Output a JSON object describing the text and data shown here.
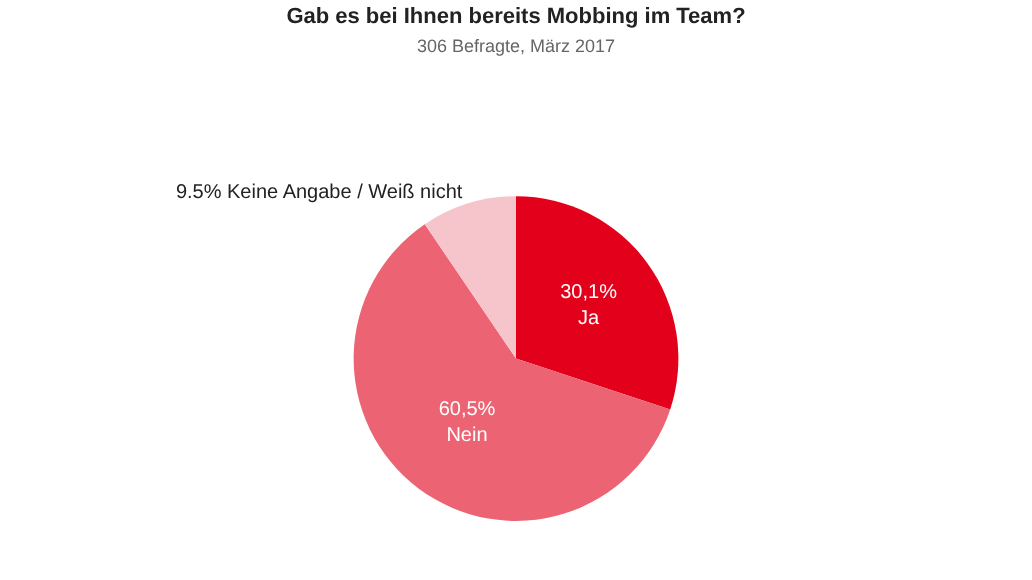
{
  "chart_data": {
    "type": "pie",
    "title": "Gab es bei Ihnen bereits Mobbing im Team?",
    "subtitle": "306 Befragte, März 2017",
    "categories": [
      "Ja",
      "Nein",
      "Keine Angabe / Weiß nicht"
    ],
    "values": [
      30.1,
      60.5,
      9.5
    ],
    "value_labels": [
      "30,1%",
      "60,5%",
      "9.5%"
    ],
    "colors": [
      "#e2001a",
      "#ec6473",
      "#f6c5cb"
    ],
    "legend": false
  }
}
